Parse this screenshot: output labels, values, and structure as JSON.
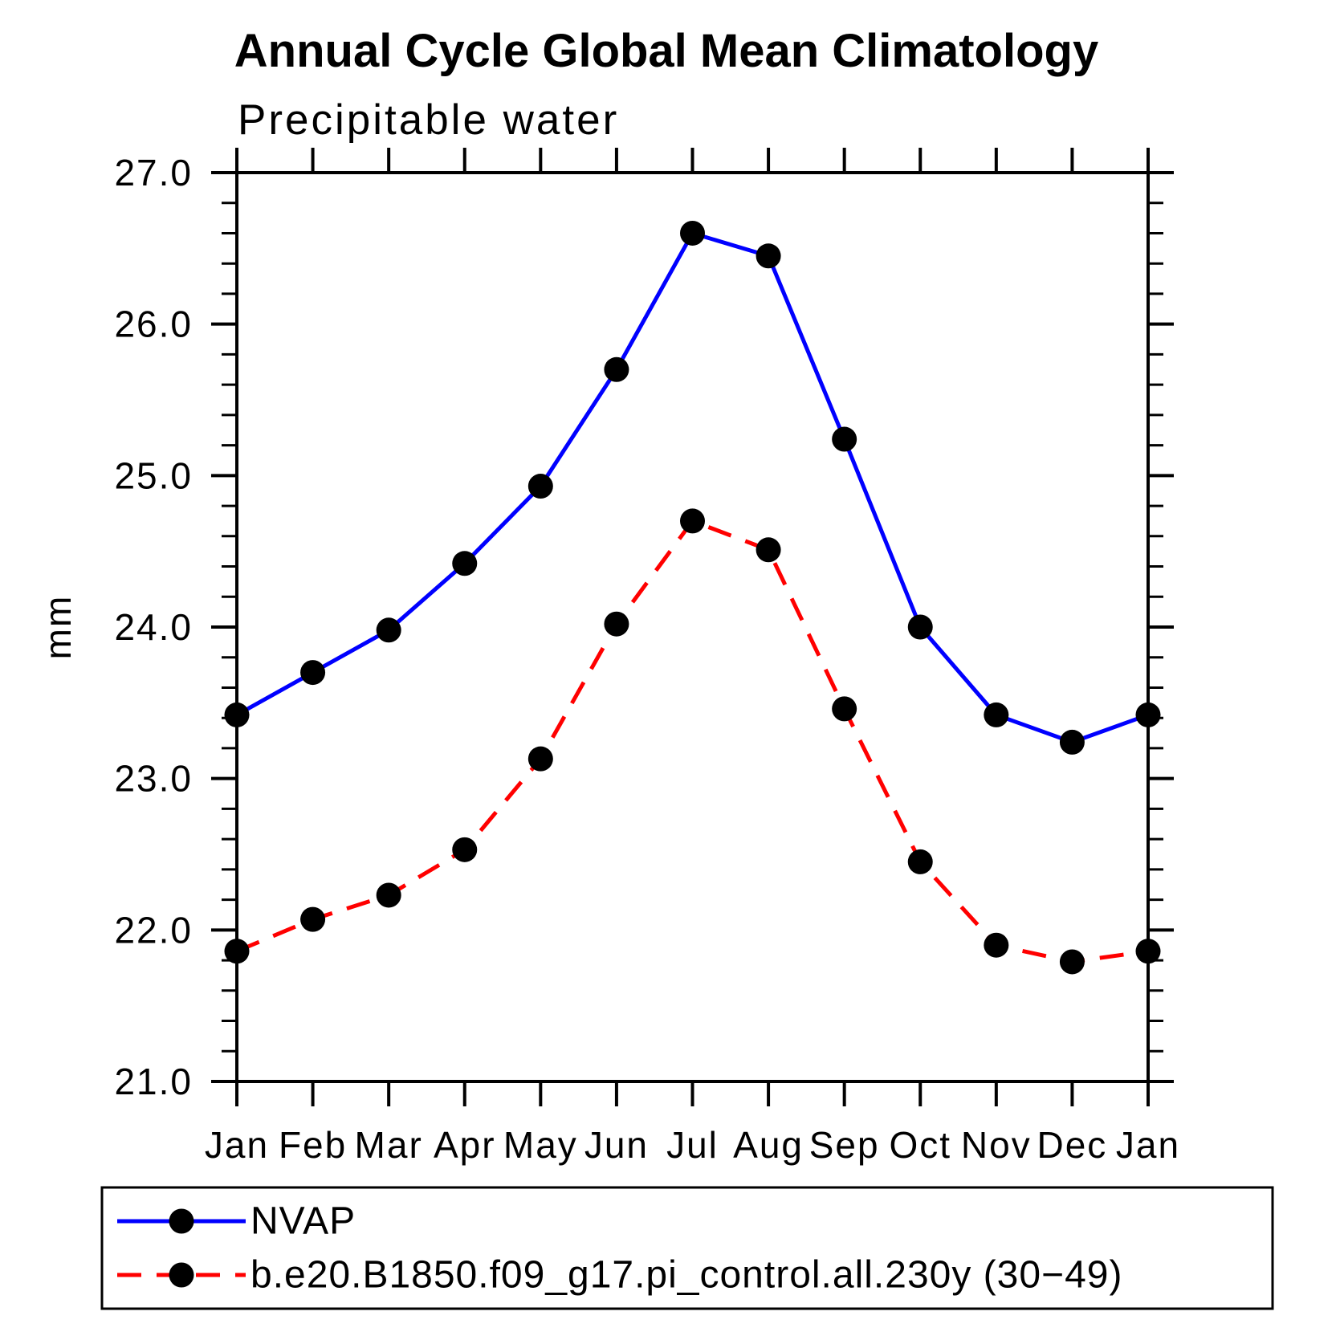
{
  "title": "Annual Cycle Global Mean Climatology",
  "subtitle": "Precipitable water",
  "chart_data": {
    "type": "line",
    "x_categories": [
      "Jan",
      "Feb",
      "Mar",
      "Apr",
      "May",
      "Jun",
      "Jul",
      "Aug",
      "Sep",
      "Oct",
      "Nov",
      "Dec",
      "Jan"
    ],
    "ylabel": "mm",
    "ylim": [
      21.0,
      27.0
    ],
    "ytick_interval": 1.0,
    "ytick_labels": [
      "21.0",
      "22.0",
      "23.0",
      "24.0",
      "25.0",
      "26.0",
      "27.0"
    ],
    "minor_ticks_per_interval": 4,
    "grid": false,
    "legend_position": "bottom-left-box",
    "series": [
      {
        "name": "NVAP",
        "color": "#0000ff",
        "line_style": "solid",
        "marker": "filled-circle",
        "marker_color": "#000000",
        "values": [
          23.42,
          23.7,
          23.98,
          24.42,
          24.93,
          25.7,
          26.6,
          26.45,
          25.24,
          24.0,
          23.42,
          23.24,
          23.42
        ]
      },
      {
        "name": "b.e20.B1850.f09_g17.pi_control.all.230y (30−49)",
        "color": "#ff0000",
        "line_style": "dashed",
        "marker": "filled-circle",
        "marker_color": "#000000",
        "values": [
          21.86,
          22.07,
          22.23,
          22.53,
          23.13,
          24.02,
          24.7,
          24.51,
          23.46,
          22.45,
          21.9,
          21.79,
          21.86
        ]
      }
    ]
  }
}
